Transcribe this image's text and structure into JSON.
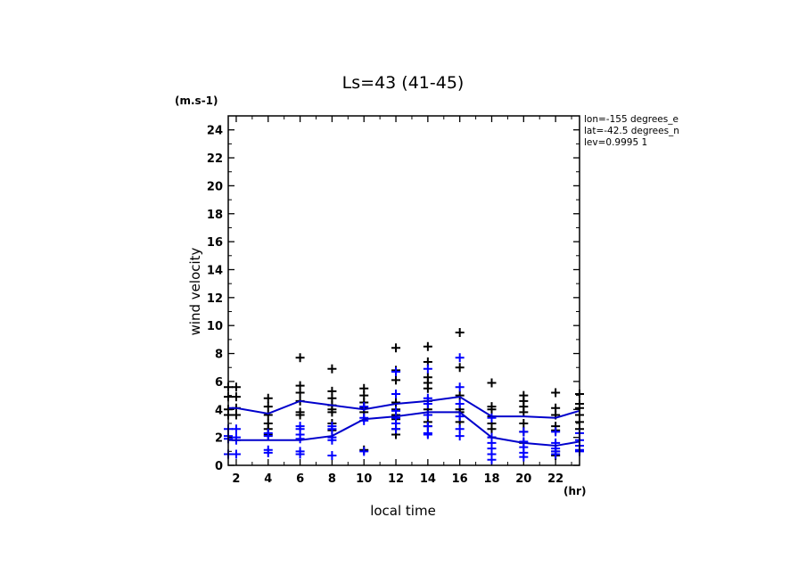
{
  "chart_data": {
    "type": "scatter",
    "title": "Ls=43 (41-45)",
    "ylabel": "wind velocity",
    "yunit": "(m.s-1)",
    "xlabel": "local time",
    "xunit": "(hr)",
    "xlim": [
      1.5,
      23.5
    ],
    "ylim": [
      0,
      25
    ],
    "xticks": [
      2,
      4,
      6,
      8,
      10,
      12,
      14,
      16,
      18,
      20,
      22
    ],
    "yticks": [
      0,
      2,
      4,
      6,
      8,
      10,
      12,
      14,
      16,
      18,
      20,
      22,
      24
    ],
    "annotations": [
      "lon=-155 degrees_e",
      "lat=-42.5 degrees_n",
      "lev=0.9995 1"
    ],
    "colors": {
      "series1": "#000000",
      "series2": "#0000ff",
      "mean_line": "#0000cc",
      "axes": "#000000"
    },
    "series": [
      {
        "color": "#000000",
        "mean_line": {
          "x": [
            1.5,
            2,
            4,
            6,
            8,
            10,
            12,
            14,
            16,
            18,
            20,
            22,
            23.5
          ],
          "y": [
            4.1,
            4.1,
            3.7,
            4.6,
            4.3,
            4.0,
            4.4,
            4.6,
            4.9,
            3.5,
            3.5,
            3.4,
            3.9
          ]
        },
        "points": [
          [
            1.5,
            5.6
          ],
          [
            1.5,
            4.9
          ],
          [
            1.5,
            4.0
          ],
          [
            1.5,
            3.6
          ],
          [
            2,
            5.6
          ],
          [
            2,
            4.9
          ],
          [
            2,
            4.1
          ],
          [
            2,
            3.6
          ],
          [
            4,
            4.8
          ],
          [
            4,
            4.2
          ],
          [
            4,
            3.6
          ],
          [
            4,
            3.0
          ],
          [
            4,
            2.6
          ],
          [
            4,
            2.2
          ],
          [
            6,
            7.7
          ],
          [
            6,
            5.7
          ],
          [
            6,
            5.2
          ],
          [
            6,
            4.6
          ],
          [
            6,
            3.8
          ],
          [
            6,
            3.6
          ],
          [
            8,
            6.9
          ],
          [
            8,
            5.3
          ],
          [
            8,
            4.8
          ],
          [
            8,
            4.3
          ],
          [
            8,
            4.0
          ],
          [
            8,
            3.8
          ],
          [
            8,
            3.0
          ],
          [
            8,
            2.5
          ],
          [
            10,
            5.5
          ],
          [
            10,
            5.0
          ],
          [
            10,
            4.5
          ],
          [
            10,
            4.1
          ],
          [
            10,
            3.8
          ],
          [
            10,
            1.1
          ],
          [
            12,
            8.4
          ],
          [
            12,
            6.8
          ],
          [
            12,
            6.1
          ],
          [
            12,
            4.5
          ],
          [
            12,
            4.0
          ],
          [
            12,
            3.6
          ],
          [
            12,
            3.3
          ],
          [
            12,
            3.0
          ],
          [
            12,
            2.6
          ],
          [
            12,
            2.2
          ],
          [
            14,
            8.5
          ],
          [
            14,
            7.4
          ],
          [
            14,
            6.3
          ],
          [
            14,
            5.9
          ],
          [
            14,
            5.5
          ],
          [
            14,
            4.6
          ],
          [
            14,
            4.0
          ],
          [
            14,
            3.6
          ],
          [
            14,
            3.1
          ],
          [
            14,
            2.8
          ],
          [
            16,
            9.5
          ],
          [
            16,
            7.0
          ],
          [
            16,
            5.0
          ],
          [
            16,
            4.0
          ],
          [
            16,
            3.8
          ],
          [
            16,
            3.1
          ],
          [
            18,
            5.9
          ],
          [
            18,
            4.2
          ],
          [
            18,
            4.0
          ],
          [
            18,
            3.5
          ],
          [
            18,
            3.0
          ],
          [
            18,
            2.6
          ],
          [
            18,
            2.0
          ],
          [
            20,
            5.0
          ],
          [
            20,
            4.6
          ],
          [
            20,
            4.2
          ],
          [
            20,
            3.8
          ],
          [
            20,
            3.0
          ],
          [
            20,
            2.4
          ],
          [
            20,
            1.6
          ],
          [
            22,
            5.2
          ],
          [
            22,
            4.1
          ],
          [
            22,
            3.6
          ],
          [
            22,
            2.8
          ],
          [
            22,
            2.5
          ],
          [
            22,
            1.0
          ],
          [
            22,
            0.7
          ],
          [
            23.5,
            5.1
          ],
          [
            23.5,
            4.4
          ],
          [
            23.5,
            4.1
          ],
          [
            23.5,
            3.6
          ],
          [
            23.5,
            3.1
          ],
          [
            23.5,
            2.6
          ]
        ]
      },
      {
        "color": "#0000ff",
        "mean_line": {
          "x": [
            1.5,
            2,
            4,
            6,
            8,
            10,
            12,
            14,
            16,
            18,
            20,
            22,
            23.5
          ],
          "y": [
            1.8,
            1.8,
            1.8,
            1.8,
            2.1,
            3.3,
            3.5,
            3.8,
            3.8,
            2.0,
            1.6,
            1.4,
            1.7
          ]
        },
        "points": [
          [
            1.5,
            2.6
          ],
          [
            1.5,
            2.1
          ],
          [
            1.5,
            1.9
          ],
          [
            1.5,
            0.8
          ],
          [
            2,
            2.6
          ],
          [
            2,
            2.0
          ],
          [
            2,
            1.8
          ],
          [
            2,
            0.8
          ],
          [
            4,
            2.3
          ],
          [
            4,
            2.1
          ],
          [
            4,
            1.1
          ],
          [
            4,
            0.9
          ],
          [
            6,
            2.8
          ],
          [
            6,
            2.6
          ],
          [
            6,
            2.2
          ],
          [
            6,
            1.9
          ],
          [
            6,
            1.0
          ],
          [
            6,
            0.8
          ],
          [
            8,
            2.8
          ],
          [
            8,
            2.6
          ],
          [
            8,
            2.0
          ],
          [
            8,
            1.8
          ],
          [
            8,
            0.7
          ],
          [
            10,
            4.2
          ],
          [
            10,
            3.4
          ],
          [
            10,
            3.2
          ],
          [
            10,
            1.0
          ],
          [
            12,
            6.7
          ],
          [
            12,
            5.1
          ],
          [
            12,
            3.9
          ],
          [
            12,
            3.4
          ],
          [
            12,
            3.0
          ],
          [
            12,
            2.6
          ],
          [
            14,
            6.9
          ],
          [
            14,
            4.8
          ],
          [
            14,
            4.4
          ],
          [
            14,
            3.6
          ],
          [
            14,
            2.8
          ],
          [
            14,
            2.3
          ],
          [
            14,
            2.2
          ],
          [
            16,
            7.7
          ],
          [
            16,
            5.6
          ],
          [
            16,
            4.4
          ],
          [
            16,
            3.5
          ],
          [
            16,
            2.6
          ],
          [
            16,
            2.1
          ],
          [
            18,
            3.4
          ],
          [
            18,
            2.0
          ],
          [
            18,
            1.6
          ],
          [
            18,
            1.2
          ],
          [
            18,
            0.8
          ],
          [
            18,
            0.4
          ],
          [
            20,
            2.4
          ],
          [
            20,
            1.7
          ],
          [
            20,
            1.3
          ],
          [
            20,
            0.9
          ],
          [
            20,
            0.6
          ],
          [
            22,
            2.4
          ],
          [
            22,
            1.6
          ],
          [
            22,
            1.2
          ],
          [
            22,
            1.0
          ],
          [
            22,
            0.8
          ],
          [
            23.5,
            2.3
          ],
          [
            23.5,
            1.8
          ],
          [
            23.5,
            1.4
          ],
          [
            23.5,
            1.1
          ],
          [
            23.5,
            1.0
          ]
        ]
      }
    ]
  }
}
